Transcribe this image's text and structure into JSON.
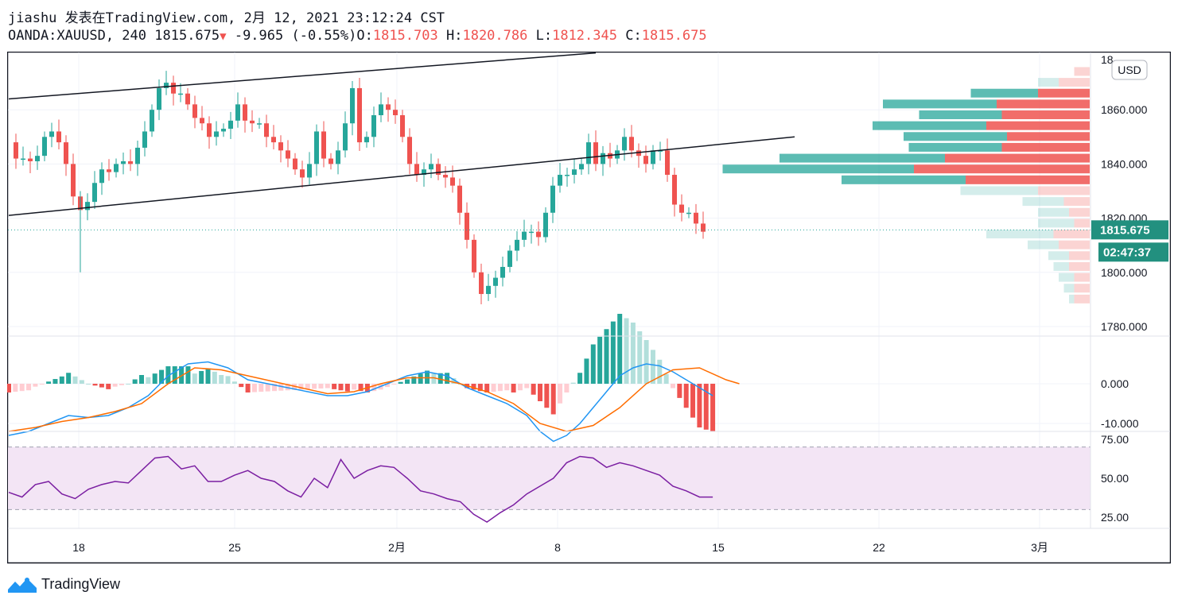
{
  "header": {
    "line1": "jiashu 发表在TradingView.com, 2月 12, 2021 23:12:24 CST",
    "symbol": "OANDA:XAUUSD, 240",
    "price": "1815.675",
    "change": "-9.965 (-0.55%)",
    "o_label": "O:",
    "o": "1815.703",
    "h_label": "H:",
    "h": "1820.786",
    "l_label": "L:",
    "l": "1812.345",
    "c_label": "C:",
    "c": "1815.675"
  },
  "chart_data": [
    {
      "type": "candlestick",
      "currency": "USD",
      "y_ticks": [
        "1860.000",
        "1840.000",
        "1820.000",
        "1800.000",
        "1780.000"
      ],
      "y_top_tick_partial": "18",
      "ylim": [
        1775,
        1880
      ],
      "x_ticks": [
        "18",
        "25",
        "2月",
        "8",
        "15",
        "22",
        "3月"
      ],
      "last_price": "1815.675",
      "countdown": "02:47:37",
      "close_path": [
        [
          0,
          1848
        ],
        [
          1,
          1842
        ],
        [
          2,
          1842
        ],
        [
          3,
          1841
        ],
        [
          4,
          1843
        ],
        [
          5,
          1850
        ],
        [
          6,
          1852
        ],
        [
          7,
          1848
        ],
        [
          8,
          1840
        ],
        [
          9,
          1828
        ],
        [
          10,
          1823
        ],
        [
          11,
          1826
        ],
        [
          12,
          1833
        ],
        [
          13,
          1838
        ],
        [
          14,
          1837
        ],
        [
          15,
          1840
        ],
        [
          16,
          1841
        ],
        [
          17,
          1840
        ],
        [
          18,
          1846
        ],
        [
          19,
          1852
        ],
        [
          20,
          1860
        ],
        [
          21,
          1868
        ],
        [
          22,
          1870
        ],
        [
          23,
          1866
        ],
        [
          24,
          1866
        ],
        [
          25,
          1862
        ],
        [
          26,
          1857
        ],
        [
          27,
          1855
        ],
        [
          28,
          1850
        ],
        [
          29,
          1852
        ],
        [
          30,
          1853
        ],
        [
          31,
          1856
        ],
        [
          32,
          1862
        ],
        [
          33,
          1856
        ],
        [
          34,
          1855
        ],
        [
          35,
          1855
        ],
        [
          36,
          1850
        ],
        [
          37,
          1848
        ],
        [
          38,
          1845
        ],
        [
          39,
          1842
        ],
        [
          40,
          1838
        ],
        [
          41,
          1835
        ],
        [
          42,
          1840
        ],
        [
          43,
          1852
        ],
        [
          44,
          1842
        ],
        [
          45,
          1840
        ],
        [
          46,
          1845
        ],
        [
          47,
          1855
        ],
        [
          48,
          1868
        ],
        [
          49,
          1848
        ],
        [
          50,
          1850
        ],
        [
          51,
          1858
        ],
        [
          52,
          1862
        ],
        [
          53,
          1860
        ],
        [
          54,
          1858
        ],
        [
          55,
          1850
        ],
        [
          56,
          1840
        ],
        [
          57,
          1836
        ],
        [
          58,
          1838
        ],
        [
          59,
          1840
        ],
        [
          60,
          1836
        ],
        [
          61,
          1835
        ],
        [
          62,
          1832
        ],
        [
          63,
          1822
        ],
        [
          64,
          1812
        ],
        [
          65,
          1800
        ],
        [
          66,
          1792
        ],
        [
          67,
          1795
        ],
        [
          68,
          1798
        ],
        [
          69,
          1802
        ],
        [
          70,
          1808
        ],
        [
          71,
          1812
        ],
        [
          72,
          1815
        ],
        [
          73,
          1815
        ],
        [
          74,
          1813
        ],
        [
          75,
          1822
        ],
        [
          76,
          1832
        ],
        [
          77,
          1836
        ],
        [
          78,
          1836
        ],
        [
          79,
          1838
        ],
        [
          80,
          1840
        ],
        [
          81,
          1848
        ],
        [
          82,
          1840
        ],
        [
          83,
          1844
        ],
        [
          84,
          1842
        ],
        [
          85,
          1845
        ],
        [
          86,
          1850
        ],
        [
          87,
          1845
        ],
        [
          88,
          1843
        ],
        [
          89,
          1840
        ],
        [
          90,
          1845
        ],
        [
          91,
          1845
        ],
        [
          92,
          1836
        ],
        [
          93,
          1825
        ],
        [
          94,
          1822
        ],
        [
          95,
          1822
        ],
        [
          96,
          1818
        ],
        [
          97,
          1815
        ]
      ],
      "channel_upper": [
        [
          0,
          1864
        ],
        [
          57,
          1881
        ]
      ],
      "channel_lower": [
        [
          0,
          1821
        ],
        [
          57,
          1845
        ],
        [
          76,
          1850
        ]
      ],
      "volume_profile": [
        {
          "price": 1874,
          "up": 0,
          "down": 3
        },
        {
          "price": 1870,
          "up": 4,
          "down": 6
        },
        {
          "price": 1866,
          "up": 13,
          "down": 10
        },
        {
          "price": 1862,
          "up": 22,
          "down": 18
        },
        {
          "price": 1858,
          "up": 16,
          "down": 17
        },
        {
          "price": 1854,
          "up": 22,
          "down": 20
        },
        {
          "price": 1850,
          "up": 20,
          "down": 16
        },
        {
          "price": 1846,
          "up": 18,
          "down": 17
        },
        {
          "price": 1842,
          "up": 32,
          "down": 28
        },
        {
          "price": 1838,
          "up": 37,
          "down": 34
        },
        {
          "price": 1834,
          "up": 24,
          "down": 24
        },
        {
          "price": 1830,
          "up": 15,
          "down": 10
        },
        {
          "price": 1826,
          "up": 8,
          "down": 5
        },
        {
          "price": 1822,
          "up": 6,
          "down": 4
        },
        {
          "price": 1818,
          "up": 7,
          "down": 3
        },
        {
          "price": 1814,
          "up": 13,
          "down": 7
        },
        {
          "price": 1810,
          "up": 6,
          "down": 6
        },
        {
          "price": 1806,
          "up": 4,
          "down": 4
        },
        {
          "price": 1802,
          "up": 3,
          "down": 4
        },
        {
          "price": 1798,
          "up": 3,
          "down": 3
        },
        {
          "price": 1794,
          "up": 2,
          "down": 3
        },
        {
          "price": 1790,
          "up": 1,
          "down": 3
        }
      ]
    },
    {
      "type": "macd",
      "y_ticks": [
        "0.000",
        "-10.000"
      ],
      "ylim": [
        -16,
        8
      ],
      "macd": [
        [
          0,
          -13
        ],
        [
          3,
          -12
        ],
        [
          6,
          -10
        ],
        [
          9,
          -8
        ],
        [
          12,
          -8.5
        ],
        [
          15,
          -8
        ],
        [
          18,
          -6
        ],
        [
          21,
          -3
        ],
        [
          24,
          2
        ],
        [
          27,
          5
        ],
        [
          30,
          5.5
        ],
        [
          33,
          4
        ],
        [
          36,
          1
        ],
        [
          39,
          0
        ],
        [
          42,
          -1
        ],
        [
          45,
          -2
        ],
        [
          48,
          -3
        ],
        [
          51,
          -3
        ],
        [
          54,
          -2
        ],
        [
          57,
          0
        ],
        [
          60,
          2
        ],
        [
          63,
          3
        ],
        [
          66,
          2
        ],
        [
          69,
          -1
        ],
        [
          72,
          -3
        ],
        [
          75,
          -5
        ],
        [
          78,
          -8
        ],
        [
          80,
          -12
        ],
        [
          82,
          -14.5
        ],
        [
          84,
          -13
        ],
        [
          86,
          -10
        ],
        [
          88,
          -6
        ],
        [
          90,
          -2
        ],
        [
          92,
          2
        ],
        [
          94,
          4
        ],
        [
          96,
          5
        ],
        [
          98,
          4.5
        ],
        [
          100,
          3
        ],
        [
          102,
          1
        ],
        [
          104,
          -1
        ],
        [
          106,
          -3
        ]
      ],
      "signal": [
        [
          0,
          -12
        ],
        [
          4,
          -11
        ],
        [
          8,
          -9.5
        ],
        [
          12,
          -8.5
        ],
        [
          16,
          -7
        ],
        [
          20,
          -5
        ],
        [
          24,
          0
        ],
        [
          28,
          4
        ],
        [
          32,
          3.5
        ],
        [
          36,
          2
        ],
        [
          40,
          0.5
        ],
        [
          44,
          -1
        ],
        [
          48,
          -2.5
        ],
        [
          52,
          -2
        ],
        [
          56,
          0
        ],
        [
          60,
          1.5
        ],
        [
          64,
          1.5
        ],
        [
          68,
          0
        ],
        [
          72,
          -2
        ],
        [
          76,
          -5
        ],
        [
          80,
          -10
        ],
        [
          84,
          -12
        ],
        [
          88,
          -10.5
        ],
        [
          92,
          -6
        ],
        [
          96,
          0
        ],
        [
          100,
          3.5
        ],
        [
          104,
          4
        ],
        [
          108,
          1
        ],
        [
          110,
          0
        ]
      ]
    },
    {
      "type": "rsi",
      "y_ticks": [
        "75.00",
        "50.00",
        "25.00"
      ],
      "ylim": [
        18,
        80
      ],
      "band": [
        30,
        70
      ],
      "values": [
        [
          0,
          41
        ],
        [
          2,
          38
        ],
        [
          4,
          46
        ],
        [
          6,
          48
        ],
        [
          8,
          40
        ],
        [
          10,
          37
        ],
        [
          12,
          43
        ],
        [
          14,
          46
        ],
        [
          16,
          48
        ],
        [
          18,
          47
        ],
        [
          20,
          55
        ],
        [
          22,
          63
        ],
        [
          24,
          64
        ],
        [
          26,
          56
        ],
        [
          28,
          58
        ],
        [
          30,
          48
        ],
        [
          32,
          48
        ],
        [
          34,
          52
        ],
        [
          36,
          55
        ],
        [
          38,
          50
        ],
        [
          40,
          48
        ],
        [
          42,
          42
        ],
        [
          44,
          38
        ],
        [
          46,
          50
        ],
        [
          48,
          44
        ],
        [
          50,
          62
        ],
        [
          52,
          50
        ],
        [
          54,
          55
        ],
        [
          56,
          58
        ],
        [
          58,
          57
        ],
        [
          60,
          50
        ],
        [
          62,
          42
        ],
        [
          64,
          40
        ],
        [
          66,
          37
        ],
        [
          68,
          35
        ],
        [
          70,
          27
        ],
        [
          72,
          22
        ],
        [
          74,
          28
        ],
        [
          76,
          33
        ],
        [
          78,
          40
        ],
        [
          80,
          45
        ],
        [
          82,
          50
        ],
        [
          84,
          60
        ],
        [
          86,
          64
        ],
        [
          88,
          63
        ],
        [
          90,
          57
        ],
        [
          92,
          60
        ],
        [
          94,
          58
        ],
        [
          96,
          55
        ],
        [
          98,
          52
        ],
        [
          100,
          45
        ],
        [
          102,
          42
        ],
        [
          104,
          38
        ],
        [
          106,
          38
        ]
      ]
    }
  ],
  "footer": {
    "brand": "TradingView"
  },
  "colors": {
    "up": "#26a69a",
    "down": "#ef5350",
    "macd": "#2196f3",
    "signal": "#ff6d00",
    "rsi": "#7b1fa2",
    "rsi_band": "#f3e5f5"
  }
}
